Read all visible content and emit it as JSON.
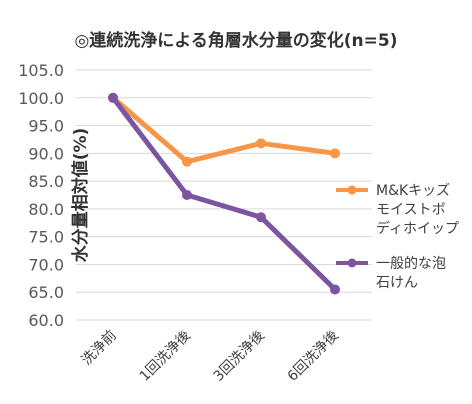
{
  "chart_data": {
    "type": "line",
    "title": "◎連続洗浄による角層水分量の変化(n=5)",
    "ylabel": "水分量相対値(%)",
    "xlabel": "",
    "categories": [
      "洗浄前",
      "1回洗浄後",
      "3回洗浄後",
      "6回洗浄後"
    ],
    "ylim": [
      60,
      105
    ],
    "yticks": [
      "60.0",
      "65.0",
      "70.0",
      "75.0",
      "80.0",
      "85.0",
      "90.0",
      "95.0",
      "100.0",
      "105.0"
    ],
    "grid": true,
    "legend": "right",
    "series": [
      {
        "name": "M&Kキッズモイストボディホイップ",
        "legend_lines": [
          "M&Kキッズ",
          "モイストボ",
          "ディホイップ"
        ],
        "color": "#F79646",
        "values": [
          100.0,
          88.5,
          91.8,
          90.0
        ]
      },
      {
        "name": "一般的な泡石けん",
        "legend_lines": [
          "一般的な泡",
          "石けん"
        ],
        "color": "#7B559F",
        "values": [
          100.0,
          82.5,
          78.5,
          65.5
        ]
      }
    ]
  }
}
